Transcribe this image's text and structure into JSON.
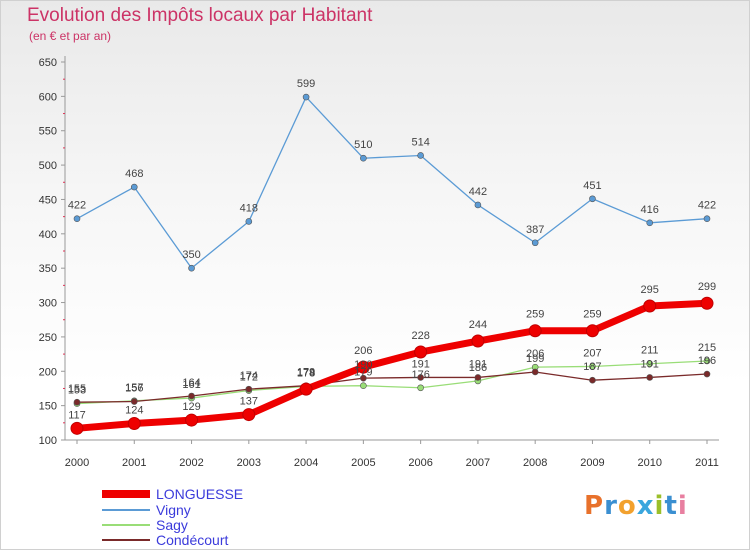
{
  "title": "Evolution des Impôts locaux par Habitant",
  "subtitle": "(en € et par an)",
  "logo": {
    "text": "Proxiti",
    "letters": [
      "P",
      "r",
      "o",
      "x",
      "i",
      "t",
      "i"
    ],
    "colors": [
      "#e8712b",
      "#3a8fd1",
      "#f2a12e",
      "#3aa6dd",
      "#9bbf2a",
      "#3a8fd1",
      "#e87fa0"
    ]
  },
  "chart_data": {
    "type": "line",
    "title": "Evolution des Impôts locaux par Habitant",
    "subtitle": "(en € et par an)",
    "xlabel": "",
    "ylabel": "",
    "x": [
      "2000",
      "2001",
      "2002",
      "2003",
      "2004",
      "2005",
      "2006",
      "2007",
      "2008",
      "2009",
      "2010",
      "2011"
    ],
    "ylim": [
      100,
      650
    ],
    "yticks": [
      100,
      150,
      200,
      250,
      300,
      350,
      400,
      450,
      500,
      550,
      600,
      650
    ],
    "grid": false,
    "legend_position": "bottom-left",
    "series": [
      {
        "name": "Vigny",
        "color": "#5b9bd5",
        "values": [
          422,
          468,
          350,
          418,
          599,
          510,
          514,
          442,
          387,
          451,
          416,
          422
        ]
      },
      {
        "name": "Sagy",
        "color": "#99dd77",
        "values": [
          153,
          157,
          161,
          172,
          178,
          179,
          176,
          186,
          206,
          207,
          211,
          215
        ]
      },
      {
        "name": "Condécourt",
        "color": "#7a2a2a",
        "values": [
          155,
          156,
          164,
          174,
          179,
          190,
          191,
          191,
          199,
          187,
          191,
          196
        ]
      },
      {
        "name": "LONGUESSE",
        "color": "#ee0000",
        "values": [
          117,
          124,
          129,
          137,
          174,
          206,
          228,
          244,
          259,
          259,
          295,
          299
        ]
      }
    ],
    "legend_order": [
      "LONGUESSE",
      "Vigny",
      "Sagy",
      "Condécourt"
    ]
  }
}
